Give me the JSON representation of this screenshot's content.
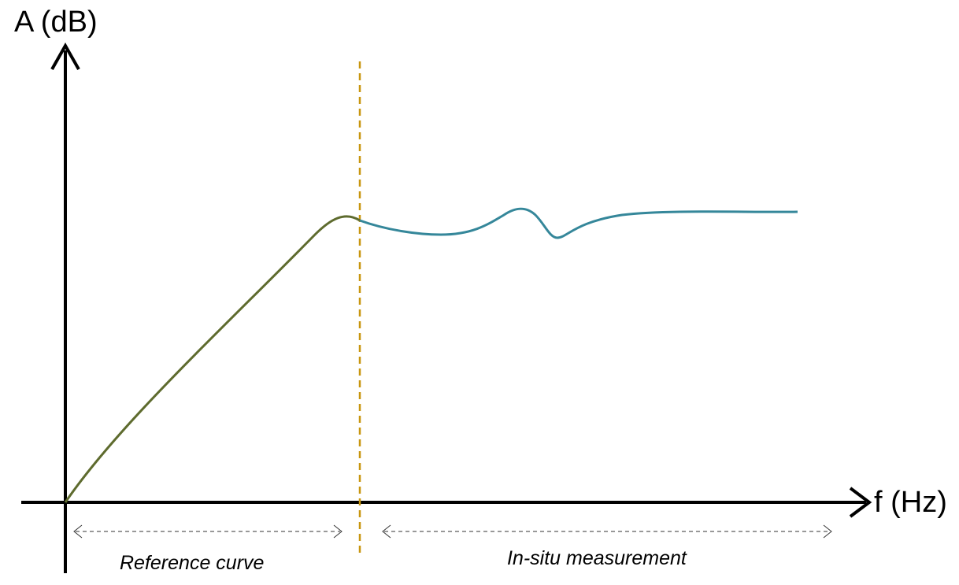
{
  "axes": {
    "y_label": "A (dB)",
    "x_label": "f (Hz)"
  },
  "regions": {
    "reference_label": "Reference curve",
    "insitu_label": "In-situ measurement"
  },
  "colors": {
    "axis": "#000000",
    "reference_curve": "#5e6b2e",
    "insitu_curve": "#35879a",
    "divider": "#c8960f",
    "range_arrow": "#333333"
  }
}
